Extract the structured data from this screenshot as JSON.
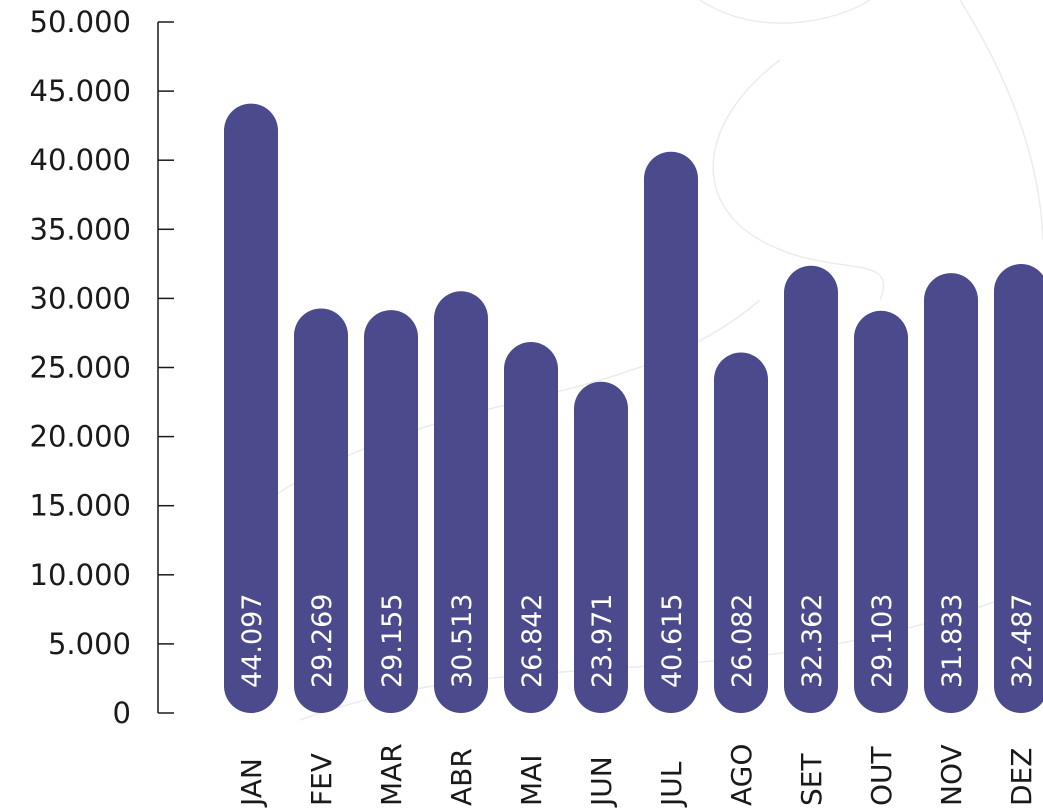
{
  "chart_data": {
    "type": "bar",
    "categories": [
      "JAN",
      "FEV",
      "MAR",
      "ABR",
      "MAI",
      "JUN",
      "JUL",
      "AGO",
      "SET",
      "OUT",
      "NOV",
      "DEZ"
    ],
    "values": [
      44097,
      29269,
      29155,
      30513,
      26842,
      23971,
      40615,
      26082,
      32362,
      29103,
      31833,
      32487
    ],
    "data_labels": [
      "44.097",
      "29.269",
      "29.155",
      "30.513",
      "26.842",
      "23.971",
      "40.615",
      "26.082",
      "32.362",
      "29.103",
      "31.833",
      "32.487"
    ],
    "yticks": [
      0,
      5000,
      10000,
      15000,
      20000,
      25000,
      30000,
      35000,
      40000,
      45000,
      50000
    ],
    "ytick_labels": [
      "0",
      "5.000",
      "10.000",
      "15.000",
      "20.000",
      "25.000",
      "30.000",
      "35.000",
      "40.000",
      "45.000",
      "50.000"
    ],
    "ylim": [
      0,
      50000
    ],
    "title": "",
    "xlabel": "",
    "ylabel": "",
    "grid": false,
    "legend": "none",
    "bar_color": "#4a4a8c"
  }
}
